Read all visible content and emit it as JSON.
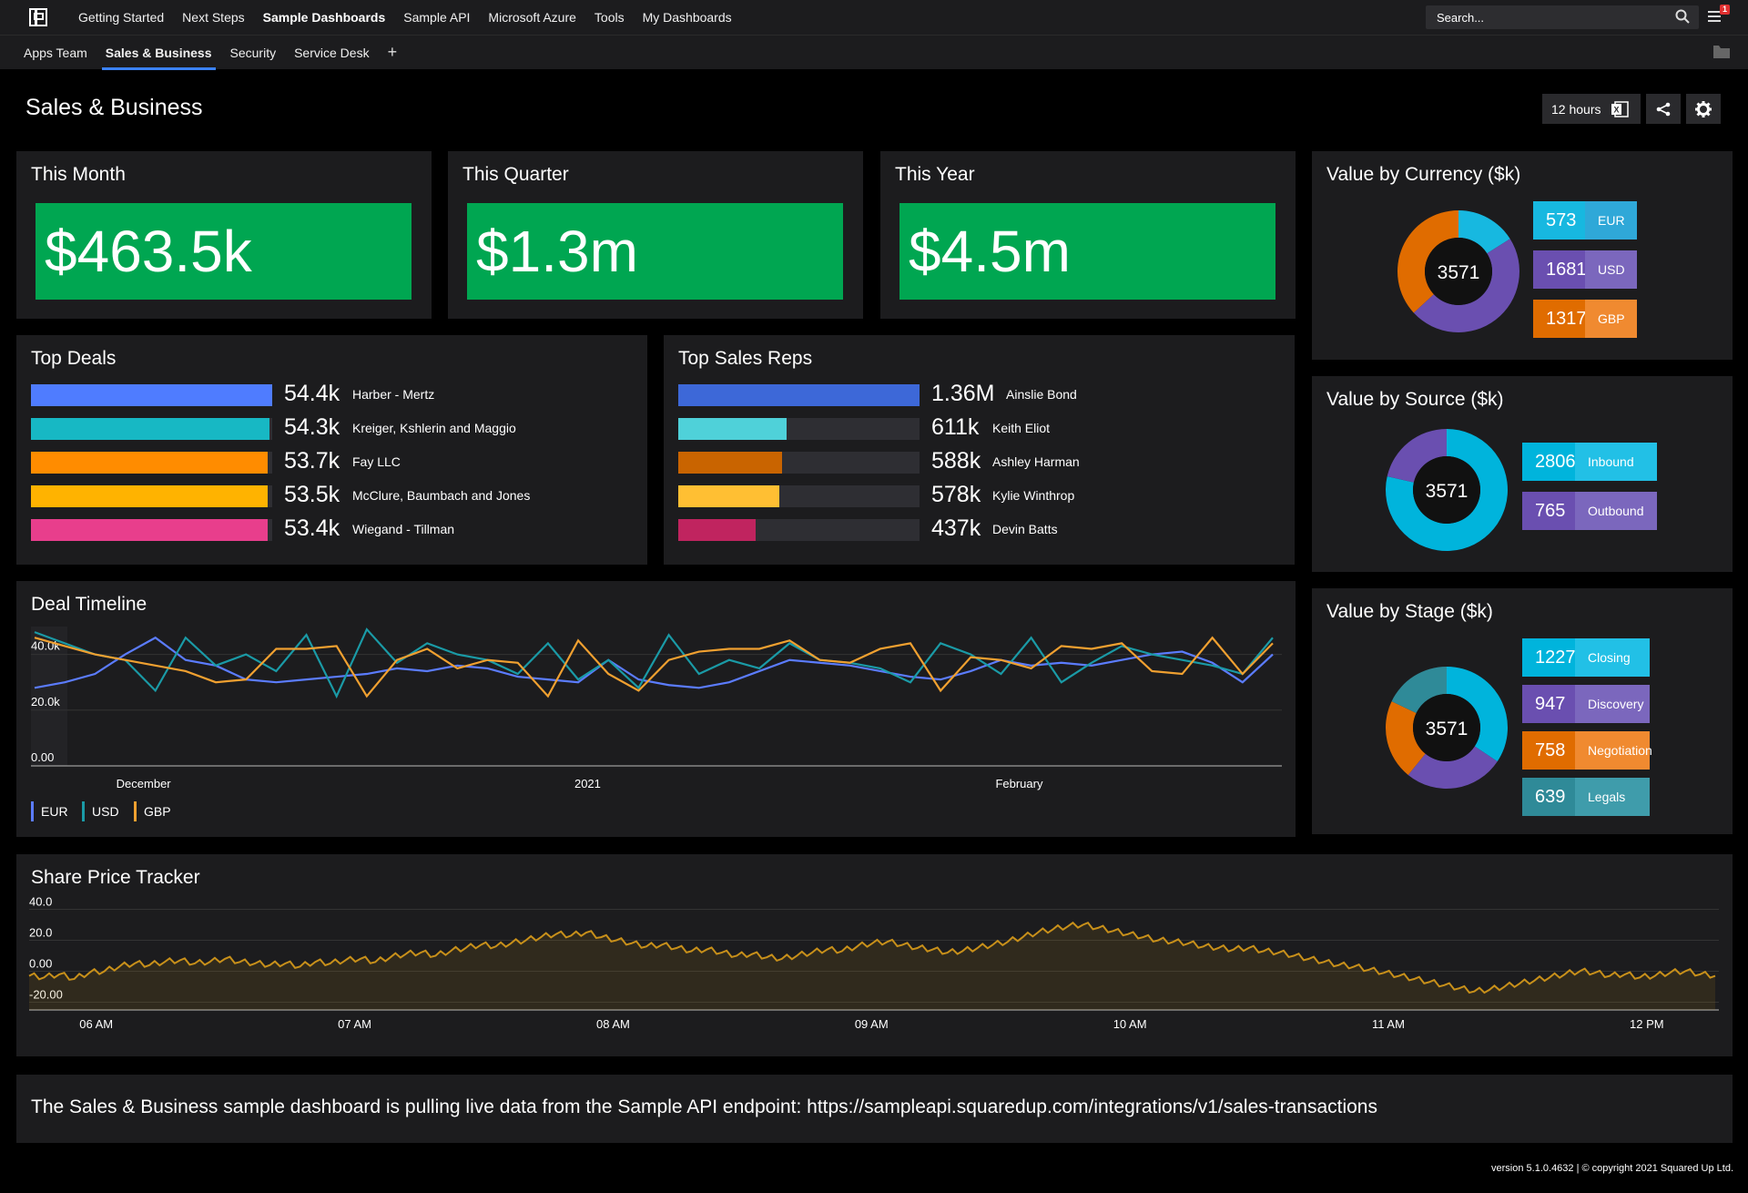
{
  "nav": {
    "items": [
      "Getting Started",
      "Next Steps",
      "Sample Dashboards",
      "Sample API",
      "Microsoft Azure",
      "Tools",
      "My Dashboards"
    ],
    "active_index": 2,
    "search_placeholder": "Search...",
    "notification_count": "1"
  },
  "subnav": {
    "tabs": [
      "Apps Team",
      "Sales & Business",
      "Security",
      "Service Desk"
    ],
    "active_index": 1,
    "add_label": "+"
  },
  "page": {
    "title": "Sales & Business",
    "time_range": "12 hours"
  },
  "kpis": [
    {
      "title": "This Month",
      "value": "$463.5k"
    },
    {
      "title": "This Quarter",
      "value": "$1.3m"
    },
    {
      "title": "This Year",
      "value": "$4.5m"
    }
  ],
  "top_deals": {
    "title": "Top Deals",
    "rows": [
      {
        "value": "54.4k",
        "name": "Harber - Mertz",
        "fraction": 1.0,
        "color": "#4f7cff"
      },
      {
        "value": "54.3k",
        "name": "Kreiger, Kshlerin and Maggio",
        "fraction": 0.99,
        "color": "#17b8c4"
      },
      {
        "value": "53.7k",
        "name": "Fay LLC",
        "fraction": 0.98,
        "color": "#ff8c00"
      },
      {
        "value": "53.5k",
        "name": "McClure, Baumbach and Jones",
        "fraction": 0.98,
        "color": "#ffb300"
      },
      {
        "value": "53.4k",
        "name": "Wiegand - Tillman",
        "fraction": 0.98,
        "color": "#e83e8c"
      }
    ]
  },
  "top_reps": {
    "title": "Top Sales Reps",
    "rows": [
      {
        "value": "1.36M",
        "name": "Ainslie Bond",
        "fraction": 1.0,
        "color": "#3d68d8"
      },
      {
        "value": "611k",
        "name": "Keith Eliot",
        "fraction": 0.45,
        "color": "#4fd1d9"
      },
      {
        "value": "588k",
        "name": "Ashley Harman",
        "fraction": 0.43,
        "color": "#c96400"
      },
      {
        "value": "578k",
        "name": "Kylie Winthrop",
        "fraction": 0.42,
        "color": "#ffbf33"
      },
      {
        "value": "437k",
        "name": "Devin Batts",
        "fraction": 0.32,
        "color": "#c0245f"
      }
    ]
  },
  "currency": {
    "title": "Value by Currency ($k)",
    "total": "3571",
    "items": [
      {
        "value": 573,
        "label": "EUR",
        "color": "#17b8e0",
        "label_color": "#2fa8d8"
      },
      {
        "value": 1681,
        "label": "USD",
        "color": "#6a4fb0",
        "label_color": "#7b67bd"
      },
      {
        "value": 1317,
        "label": "GBP",
        "color": "#e06c00",
        "label_color": "#f08a30"
      }
    ]
  },
  "source": {
    "title": "Value by Source ($k)",
    "total": "3571",
    "items": [
      {
        "value": 2806,
        "label": "Inbound",
        "color": "#00b4dc",
        "label_color": "#22c0e6"
      },
      {
        "value": 765,
        "label": "Outbound",
        "color": "#6a4fb0",
        "label_color": "#7b67bd"
      }
    ]
  },
  "stage": {
    "title": "Value by Stage ($k)",
    "total": "3571",
    "items": [
      {
        "value": 1227,
        "label": "Closing",
        "color": "#00b4dc",
        "label_color": "#22c0e6"
      },
      {
        "value": 947,
        "label": "Discovery",
        "color": "#6a4fb0",
        "label_color": "#7b67bd"
      },
      {
        "value": 758,
        "label": "Negotiation",
        "color": "#e06c00",
        "label_color": "#f08a30"
      },
      {
        "value": 639,
        "label": "Legals",
        "color": "#2f8a98",
        "label_color": "#3f9cab"
      }
    ]
  },
  "chart_data": [
    {
      "type": "line",
      "title": "Deal Timeline",
      "ylim": [
        0,
        50000
      ],
      "yticks": [
        "40.0k",
        "20.0k",
        "0.00"
      ],
      "ytick_values": [
        40000,
        20000,
        0
      ],
      "xticks": [
        "December",
        "2021",
        "February"
      ],
      "xtick_positions": [
        0.09,
        0.445,
        0.79
      ],
      "series": [
        {
          "name": "EUR",
          "color": "#5b7cff",
          "values": [
            28000,
            30000,
            33000,
            40000,
            46000,
            38000,
            36000,
            31000,
            30000,
            31000,
            32000,
            33000,
            35000,
            34000,
            36000,
            35000,
            32000,
            31000,
            30000,
            38000,
            31000,
            29000,
            28000,
            30000,
            34000,
            38000,
            37000,
            36000,
            34000,
            32000,
            31000,
            34000,
            38000,
            36000,
            37000,
            36000,
            38000,
            40000,
            41000,
            37000,
            30000,
            40000
          ]
        },
        {
          "name": "USD",
          "color": "#1a9aa6",
          "values": [
            48000,
            44000,
            40000,
            38000,
            27000,
            46000,
            36000,
            40000,
            34000,
            47000,
            25000,
            49000,
            37000,
            44000,
            40000,
            38000,
            33000,
            44000,
            31000,
            38000,
            28000,
            47000,
            33000,
            38000,
            35000,
            44000,
            38000,
            37000,
            35000,
            30000,
            44000,
            40000,
            33000,
            46000,
            30000,
            37000,
            43000,
            40000,
            38000,
            36000,
            33000,
            46000
          ]
        },
        {
          "name": "GBP",
          "color": "#f0a030",
          "values": [
            46000,
            43000,
            40000,
            38000,
            36000,
            34000,
            30000,
            31000,
            42000,
            42000,
            43000,
            25000,
            38000,
            42000,
            35000,
            38000,
            37000,
            25000,
            45000,
            33000,
            27000,
            38000,
            41000,
            42000,
            42000,
            45000,
            38000,
            37000,
            42000,
            44000,
            27000,
            39000,
            38000,
            35000,
            43000,
            42000,
            44000,
            34000,
            33000,
            46000,
            33000,
            44000
          ]
        }
      ]
    },
    {
      "type": "area",
      "title": "Share Price Tracker",
      "ylim": [
        -25,
        45
      ],
      "yticks": [
        "40.0",
        "20.0",
        "0.00",
        "-20.00"
      ],
      "ytick_values": [
        40,
        20,
        0,
        -20
      ],
      "xticks": [
        "06 AM",
        "07 AM",
        "08 AM",
        "09 AM",
        "10 AM",
        "11 AM",
        "12 PM"
      ],
      "xtick_positions": [
        0.054,
        0.262,
        0.47,
        0.678,
        0.886,
        1.094,
        1.302
      ],
      "series": [
        {
          "name": "",
          "color": "#c8901a",
          "values": [
            -3,
            -4,
            -2,
            -5,
            -1,
            0,
            3,
            5,
            4,
            6,
            7,
            5,
            6,
            8,
            6,
            5,
            4,
            5,
            3,
            6,
            5,
            7,
            8,
            6,
            9,
            11,
            12,
            10,
            13,
            15,
            17,
            16,
            18,
            20,
            22,
            24,
            23,
            25,
            22,
            20,
            18,
            16,
            17,
            15,
            13,
            14,
            12,
            10,
            11,
            9,
            8,
            10,
            12,
            14,
            13,
            16,
            18,
            19,
            17,
            15,
            14,
            12,
            13,
            15,
            17,
            19,
            22,
            25,
            27,
            29,
            30,
            28,
            26,
            24,
            22,
            20,
            19,
            18,
            16,
            15,
            14,
            15,
            13,
            12,
            10,
            8,
            6,
            4,
            3,
            1,
            -1,
            -3,
            -5,
            -7,
            -9,
            -11,
            -13,
            -12,
            -10,
            -8,
            -6,
            -4,
            -2,
            0,
            -1,
            -3,
            -2,
            -4,
            -3,
            -1,
            0,
            -2,
            -3
          ]
        }
      ]
    }
  ],
  "footer": {
    "message": "The Sales & Business sample dashboard is pulling live data from the Sample API endpoint: https://sampleapi.squaredup.com/integrations/v1/sales-transactions",
    "version": "version 5.1.0.4632 | © copyright 2021 Squared Up Ltd."
  }
}
